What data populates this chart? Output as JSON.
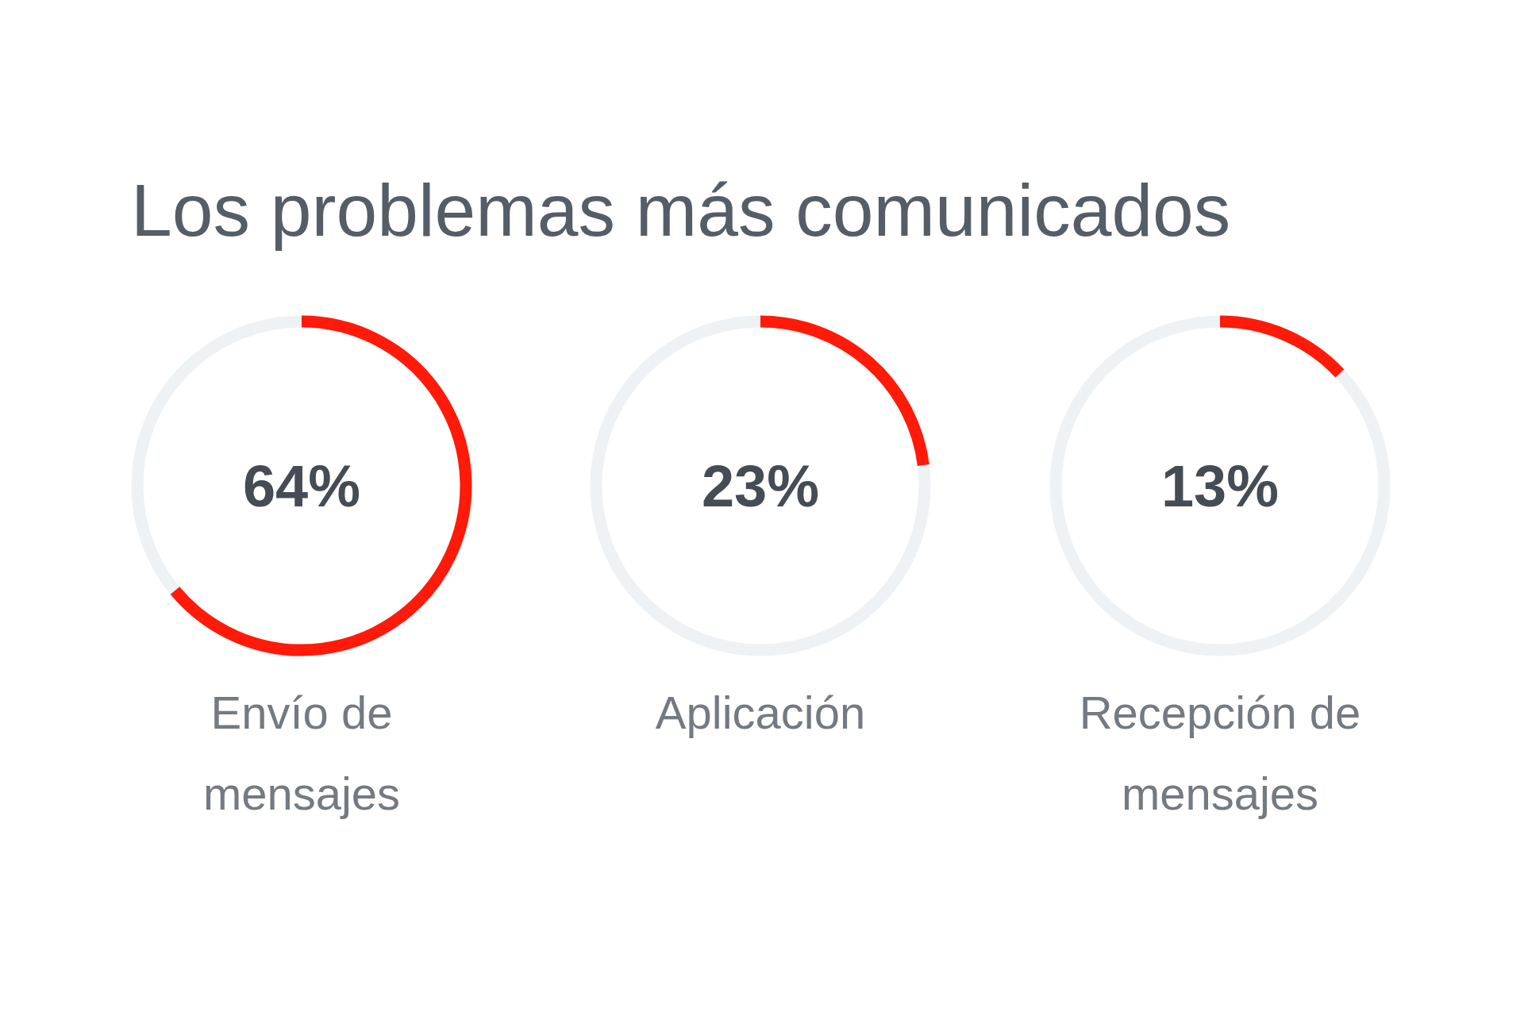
{
  "chart_data": {
    "type": "other",
    "title": "Los problemas más comunicados",
    "categories": [
      "Envío de mensajes",
      "Aplicación",
      "Recepción de mensajes"
    ],
    "values": [
      64,
      23,
      13
    ],
    "value_labels": [
      "64%",
      "23%",
      "13%"
    ],
    "colors": [
      "#ff1a0a",
      "#ff1a0a",
      "#ff1a0a"
    ]
  }
}
